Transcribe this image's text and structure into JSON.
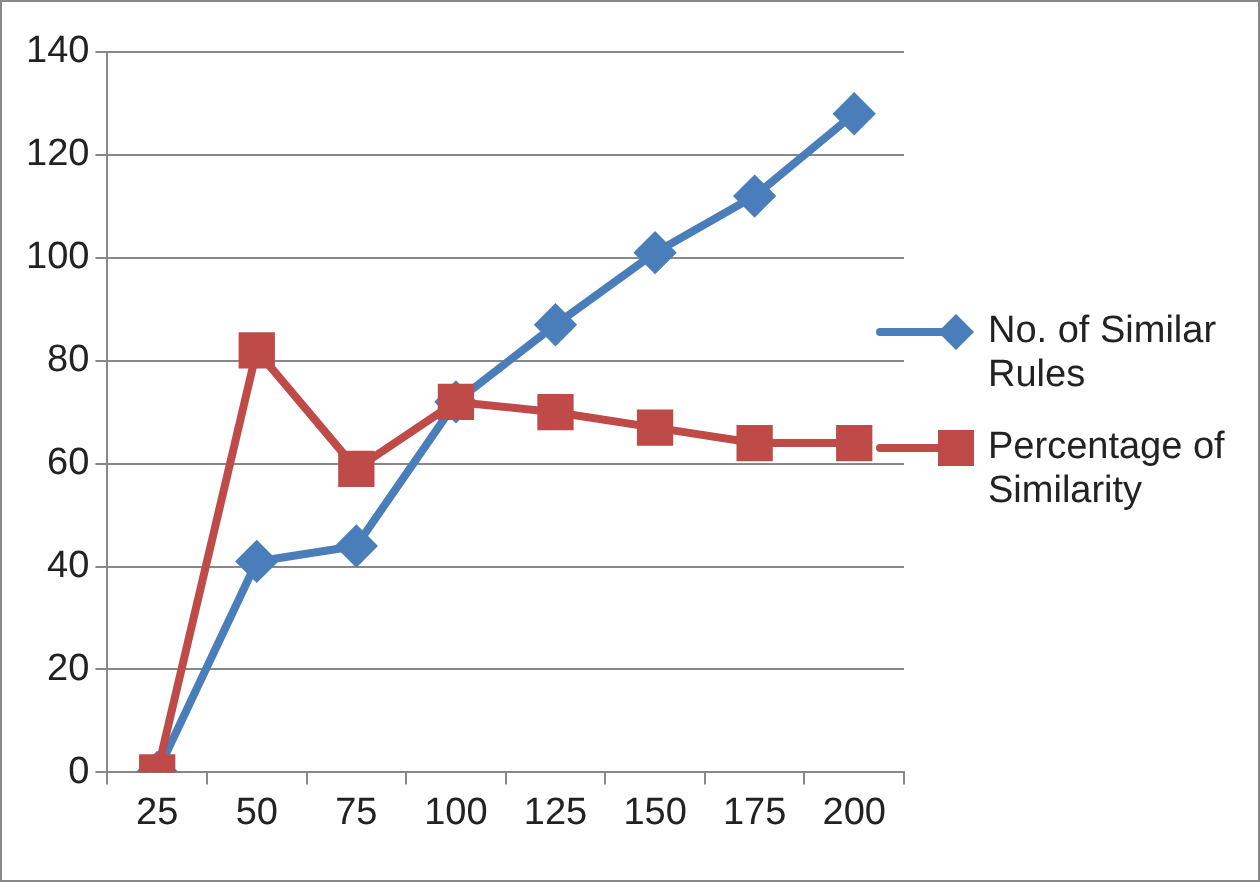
{
  "chart_data": {
    "type": "line",
    "categories": [
      "25",
      "50",
      "75",
      "100",
      "125",
      "150",
      "175",
      "200"
    ],
    "series": [
      {
        "name": "No. of Similar Rules",
        "color": "#4a7ebb",
        "marker": "diamond",
        "values": [
          0,
          41,
          44,
          72,
          87,
          101,
          112,
          128
        ]
      },
      {
        "name": "Percentage of Similarity",
        "color": "#be4b48",
        "marker": "square",
        "values": [
          0,
          82,
          59,
          72,
          70,
          67,
          64,
          64
        ]
      }
    ],
    "ylim": [
      0,
      140
    ],
    "yticks": [
      0,
      20,
      40,
      60,
      80,
      100,
      120,
      140
    ],
    "grid": "y",
    "legend": "right"
  }
}
